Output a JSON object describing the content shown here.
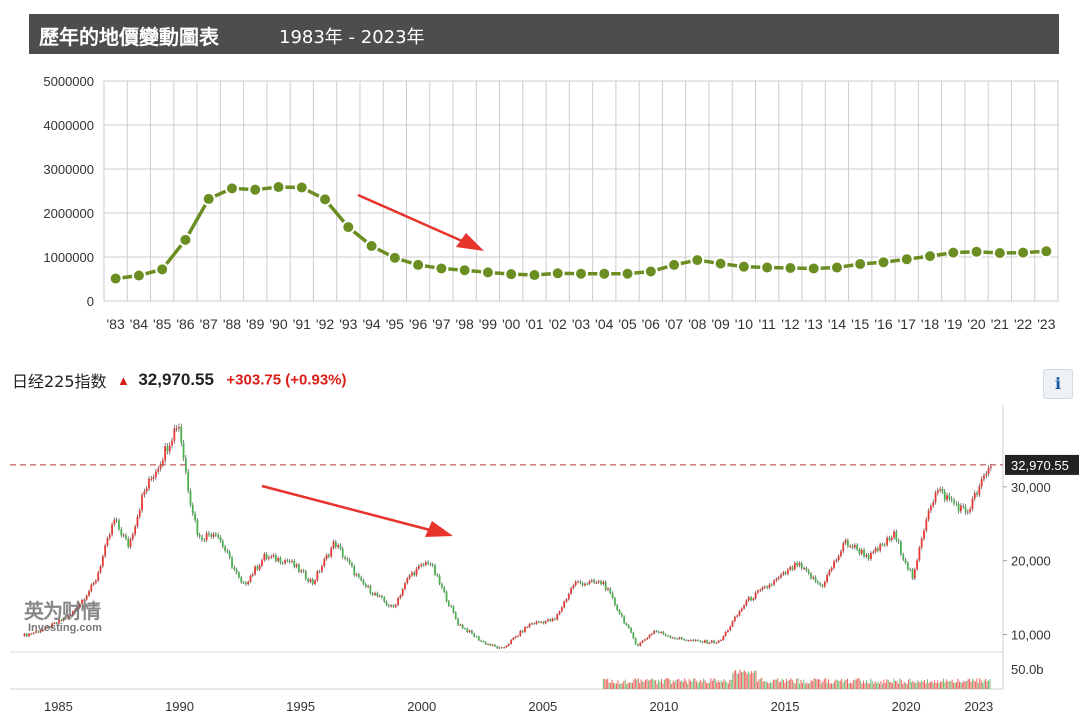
{
  "header": {
    "title": "歷年的地價變動圖表",
    "range": "1983年 - 2023年"
  },
  "index": {
    "name": "日经225指数",
    "price": "32,970.55",
    "change": "+303.75",
    "change_pct": "(+0.93%)",
    "info_label": "i",
    "watermark_cn": "英为财情",
    "watermark_en": "Investing.com"
  },
  "colors": {
    "land_line": "#6b8e23",
    "up_candle": "#e53935",
    "down_candle": "#4caf50",
    "price_line": "#b13a3a",
    "price_tag_bg": "#222222",
    "arrow": "#e8322c",
    "grid": "#cccccc",
    "header_bg": "#4d4d4d"
  },
  "chart_data": [
    {
      "type": "line",
      "title": "歷年的地價變動圖表",
      "categories": [
        "'83",
        "'84",
        "'85",
        "'86",
        "'87",
        "'88",
        "'89",
        "'90",
        "'91",
        "'92",
        "'93",
        "'94",
        "'95",
        "'96",
        "'97",
        "'98",
        "'99",
        "'00",
        "'01",
        "'02",
        "'03",
        "'04",
        "'05",
        "'06",
        "'07",
        "'08",
        "'09",
        "'10",
        "'11",
        "'12",
        "'13",
        "'14",
        "'15",
        "'16",
        "'17",
        "'18",
        "'19",
        "'20",
        "'21",
        "'22",
        "'23"
      ],
      "values": [
        510000,
        580000,
        720000,
        1390000,
        2320000,
        2560000,
        2530000,
        2590000,
        2580000,
        2310000,
        1680000,
        1250000,
        980000,
        820000,
        740000,
        700000,
        650000,
        610000,
        590000,
        630000,
        620000,
        620000,
        620000,
        670000,
        820000,
        930000,
        850000,
        780000,
        760000,
        750000,
        740000,
        760000,
        840000,
        880000,
        950000,
        1020000,
        1100000,
        1120000,
        1090000,
        1100000,
        1130000
      ],
      "ylim": [
        0,
        5000000
      ],
      "yticks": [
        "0",
        "1000000",
        "2000000",
        "3000000",
        "4000000",
        "5000000"
      ],
      "grid": true,
      "annotation": "red arrow pointing down"
    },
    {
      "type": "line",
      "title": "日经225指数",
      "x": [
        1983.5,
        1984.5,
        1985.5,
        1986.5,
        1987.3,
        1987.9,
        1988.5,
        1989.2,
        1989.95,
        1990.4,
        1990.8,
        1991.5,
        1992.6,
        1993.5,
        1994.5,
        1995.5,
        1996.4,
        1997.5,
        1998.8,
        1999.5,
        2000.3,
        2001.5,
        2002.5,
        2003.3,
        2004.5,
        2005.5,
        2006.3,
        2007.5,
        2008.9,
        2009.6,
        2010.5,
        2011.5,
        2012.3,
        2013.4,
        2014.5,
        2015.5,
        2016.5,
        2017.5,
        2018.5,
        2019.5,
        2020.3,
        2020.9,
        2021.3,
        2022.5,
        2023.2,
        2023.5
      ],
      "values": [
        9800,
        10800,
        12600,
        17000,
        25500,
        22000,
        29000,
        33500,
        38900,
        29000,
        23000,
        24000,
        16500,
        20500,
        20000,
        17000,
        22500,
        17000,
        13500,
        18000,
        20000,
        11500,
        9000,
        8000,
        11500,
        12000,
        17000,
        17000,
        8500,
        10500,
        9500,
        9000,
        9000,
        14500,
        17000,
        19500,
        16500,
        22500,
        20500,
        23500,
        17500,
        27000,
        29500,
        26500,
        31000,
        32970
      ],
      "ylim": [
        7500,
        40000
      ],
      "yticks": [
        "10,000",
        "20,000",
        "30,000"
      ],
      "xticks": [
        "1985",
        "1990",
        "1995",
        "2000",
        "2005",
        "2010",
        "2015",
        "2020",
        "2023"
      ],
      "last_price_label": "32,970.55",
      "volume_label": "50.0b",
      "volume_start": 2007.5,
      "volume_end": 2023.5,
      "annotation": "red arrow pointing down"
    }
  ]
}
